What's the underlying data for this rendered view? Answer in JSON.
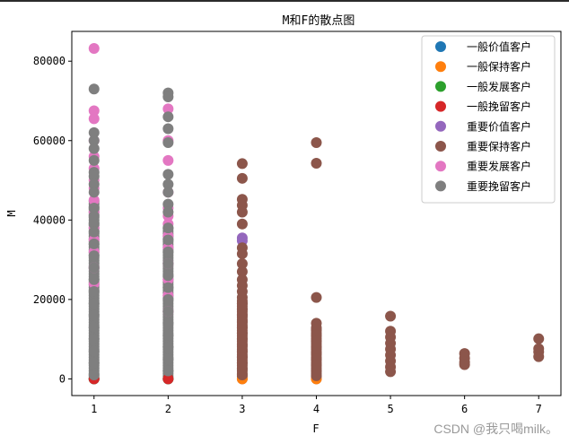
{
  "chart_data": {
    "type": "scatter",
    "title": "M和F的散点图",
    "xlabel": "F",
    "ylabel": "M",
    "xlim": [
      0.7,
      7.3
    ],
    "ylim": [
      -4200,
      87500
    ],
    "x_ticks": [
      1,
      2,
      3,
      4,
      5,
      6,
      7
    ],
    "y_ticks": [
      0,
      20000,
      40000,
      60000,
      80000
    ],
    "y_tick_labels": [
      "0",
      "20000",
      "40000",
      "60000",
      "80000"
    ],
    "grid": false,
    "legend_position": "top-right",
    "series": [
      {
        "name": "一般价值客户",
        "color": "#1f77b4",
        "points": [
          [
            1,
            0
          ],
          [
            2,
            0
          ]
        ]
      },
      {
        "name": "一般保持客户",
        "color": "#ff7f0e",
        "points": [
          [
            3,
            0
          ],
          [
            4,
            0
          ]
        ]
      },
      {
        "name": "一般发展客户",
        "color": "#2ca02c",
        "points": [
          [
            1,
            0
          ],
          [
            2,
            0
          ]
        ]
      },
      {
        "name": "一般挽留客户",
        "color": "#d62728",
        "points": [
          [
            1,
            0
          ],
          [
            2,
            0
          ]
        ]
      },
      {
        "name": "重要价值客户",
        "color": "#9467bd",
        "points": [
          [
            3,
            35500
          ],
          [
            3,
            34800
          ]
        ]
      },
      {
        "name": "重要保持客户",
        "color": "#8c564b",
        "points": [
          [
            3,
            54200
          ],
          [
            3,
            50500
          ],
          [
            3,
            45200
          ],
          [
            3,
            43700
          ],
          [
            3,
            42000
          ],
          [
            3,
            39000
          ],
          [
            3,
            33000
          ],
          [
            3,
            31500
          ],
          [
            3,
            29000
          ],
          [
            3,
            27000
          ],
          [
            3,
            25000
          ],
          [
            3,
            23500
          ],
          [
            3,
            22000
          ],
          [
            3,
            20500
          ],
          [
            3,
            19000
          ],
          [
            3,
            17500
          ],
          [
            3,
            16000
          ],
          [
            3,
            14500
          ],
          [
            3,
            13000
          ],
          [
            3,
            11500
          ],
          [
            3,
            10000
          ],
          [
            3,
            8500
          ],
          [
            3,
            7000
          ],
          [
            3,
            5500
          ],
          [
            3,
            4000
          ],
          [
            3,
            2500
          ],
          [
            3,
            1000
          ],
          [
            4,
            59500
          ],
          [
            4,
            54300
          ],
          [
            4,
            20500
          ],
          [
            4,
            14000
          ],
          [
            4,
            12500
          ],
          [
            4,
            11000
          ],
          [
            4,
            9500
          ],
          [
            4,
            8000
          ],
          [
            4,
            6500
          ],
          [
            4,
            5000
          ],
          [
            4,
            3500
          ],
          [
            4,
            2000
          ],
          [
            4,
            800
          ],
          [
            5,
            15800
          ],
          [
            5,
            12000
          ],
          [
            5,
            10500
          ],
          [
            5,
            9000
          ],
          [
            5,
            7500
          ],
          [
            5,
            6000
          ],
          [
            5,
            4500
          ],
          [
            5,
            3000
          ],
          [
            5,
            1800
          ],
          [
            6,
            6400
          ],
          [
            6,
            5200
          ],
          [
            6,
            4200
          ],
          [
            6,
            3600
          ],
          [
            7,
            10100
          ],
          [
            7,
            7600
          ],
          [
            7,
            6800
          ],
          [
            7,
            5600
          ]
        ]
      },
      {
        "name": "重要发展客户",
        "color": "#e377c2",
        "points": [
          [
            1,
            83200
          ],
          [
            1,
            67500
          ],
          [
            1,
            65500
          ],
          [
            1,
            60000
          ],
          [
            1,
            56000
          ],
          [
            1,
            53000
          ],
          [
            1,
            50000
          ],
          [
            1,
            48000
          ],
          [
            1,
            45000
          ],
          [
            1,
            42000
          ],
          [
            1,
            38000
          ],
          [
            1,
            35000
          ],
          [
            1,
            32000
          ],
          [
            1,
            28000
          ],
          [
            1,
            24000
          ],
          [
            2,
            68000
          ],
          [
            2,
            60000
          ],
          [
            2,
            55000
          ],
          [
            2,
            47000
          ],
          [
            2,
            43000
          ],
          [
            2,
            41000
          ],
          [
            2,
            39000
          ],
          [
            2,
            36000
          ],
          [
            2,
            33000
          ],
          [
            2,
            29000
          ],
          [
            2,
            25000
          ],
          [
            2,
            21000
          ],
          [
            2,
            17000
          ]
        ]
      },
      {
        "name": "重要挽留客户",
        "color": "#7f7f7f",
        "points": [
          [
            1,
            73000
          ],
          [
            1,
            62000
          ],
          [
            1,
            60000
          ],
          [
            1,
            58000
          ],
          [
            1,
            55000
          ],
          [
            1,
            52000
          ],
          [
            1,
            51000
          ],
          [
            1,
            49000
          ],
          [
            1,
            47000
          ],
          [
            1,
            43000
          ],
          [
            1,
            41000
          ],
          [
            1,
            39000
          ],
          [
            1,
            37000
          ],
          [
            1,
            34000
          ],
          [
            1,
            31000
          ],
          [
            1,
            28000
          ],
          [
            1,
            25000
          ],
          [
            1,
            22000
          ],
          [
            1,
            19000
          ],
          [
            1,
            16000
          ],
          [
            1,
            13000
          ],
          [
            1,
            10000
          ],
          [
            1,
            7000
          ],
          [
            1,
            4000
          ],
          [
            1,
            1000
          ],
          [
            2,
            72000
          ],
          [
            2,
            71000
          ],
          [
            2,
            66000
          ],
          [
            2,
            63000
          ],
          [
            2,
            59500
          ],
          [
            2,
            51500
          ],
          [
            2,
            49000
          ],
          [
            2,
            47000
          ],
          [
            2,
            44000
          ],
          [
            2,
            42000
          ],
          [
            2,
            38000
          ],
          [
            2,
            35000
          ],
          [
            2,
            32000
          ],
          [
            2,
            29000
          ],
          [
            2,
            26000
          ],
          [
            2,
            23000
          ],
          [
            2,
            20000
          ],
          [
            2,
            17000
          ],
          [
            2,
            14000
          ],
          [
            2,
            11000
          ],
          [
            2,
            8000
          ],
          [
            2,
            5000
          ],
          [
            2,
            2000
          ]
        ]
      }
    ],
    "dense_columns": [
      {
        "x": 1,
        "y_from": 0,
        "y_to": 45000,
        "color": "#7f7f7f"
      },
      {
        "x": 2,
        "y_from": 0,
        "y_to": 38000,
        "color": "#7f7f7f"
      },
      {
        "x": 3,
        "y_from": 0,
        "y_to": 20000,
        "color": "#8c564b"
      },
      {
        "x": 4,
        "y_from": 0,
        "y_to": 13000,
        "color": "#8c564b"
      }
    ]
  },
  "watermark": "CSDN @我只喝milk。"
}
